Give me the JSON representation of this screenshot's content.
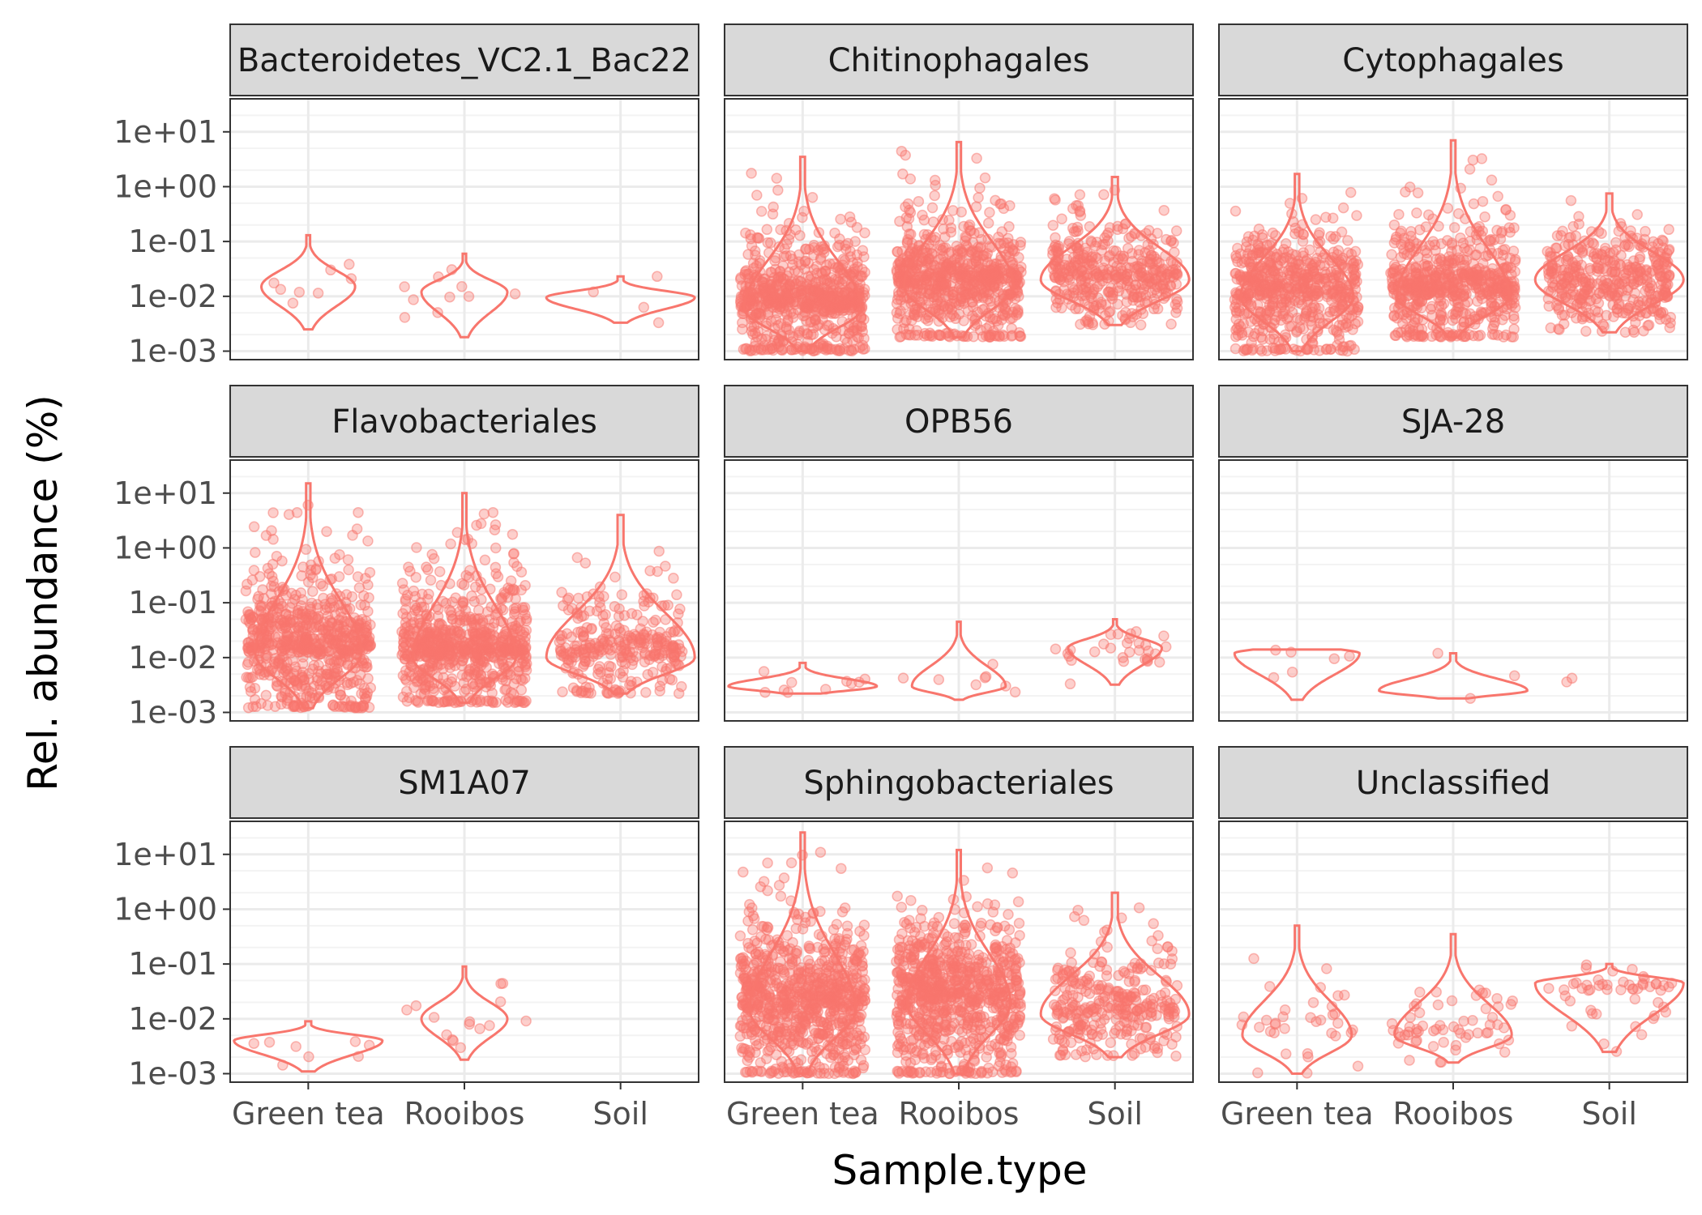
{
  "chart_data": {
    "type": "violin+jitter",
    "xlabel": "Sample.type",
    "ylabel": "Rel. abundance (%)",
    "y_scale": "log10",
    "ylim": [
      0.0007,
      40
    ],
    "y_ticks": [
      {
        "value": 10,
        "label": "1e+01"
      },
      {
        "value": 1,
        "label": "1e+00"
      },
      {
        "value": 0.1,
        "label": "1e-01"
      },
      {
        "value": 0.01,
        "label": "1e-02"
      },
      {
        "value": 0.001,
        "label": "1e-03"
      }
    ],
    "categories": [
      "Green tea",
      "Rooibos",
      "Soil"
    ],
    "grid": true,
    "legend": "none",
    "colors": {
      "series": "#F8766D",
      "strip_fill": "#d9d9d9",
      "panel_border": "#333333",
      "grid_major": "#ebebeb",
      "grid_minor": "#f3f3f3"
    },
    "panels": [
      {
        "name": "Bacteroidetes_VC2.1_Bac22",
        "groups": [
          {
            "category": "Green tea",
            "min": 0.0025,
            "max": 0.13,
            "mode": 0.015,
            "n": 8,
            "width": 0.6
          },
          {
            "category": "Rooibos",
            "min": 0.0018,
            "max": 0.06,
            "mode": 0.012,
            "n": 10,
            "width": 0.55
          },
          {
            "category": "Soil",
            "min": 0.0033,
            "max": 0.023,
            "mode": 0.0095,
            "n": 4,
            "width": 0.95
          }
        ]
      },
      {
        "name": "Chitinophagales",
        "groups": [
          {
            "category": "Green tea",
            "min": 0.001,
            "max": 3.5,
            "mode": 0.006,
            "n": 700,
            "width": 0.75
          },
          {
            "category": "Rooibos",
            "min": 0.0018,
            "max": 6.5,
            "mode": 0.015,
            "n": 700,
            "width": 0.7
          },
          {
            "category": "Soil",
            "min": 0.003,
            "max": 1.5,
            "mode": 0.02,
            "n": 400,
            "width": 0.95
          }
        ]
      },
      {
        "name": "Cytophagales",
        "groups": [
          {
            "category": "Green tea",
            "min": 0.001,
            "max": 1.7,
            "mode": 0.01,
            "n": 600,
            "width": 0.72
          },
          {
            "category": "Rooibos",
            "min": 0.0018,
            "max": 7,
            "mode": 0.01,
            "n": 600,
            "width": 0.72
          },
          {
            "category": "Soil",
            "min": 0.0022,
            "max": 0.75,
            "mode": 0.02,
            "n": 400,
            "width": 0.95
          }
        ]
      },
      {
        "name": "Flavobacteriales",
        "groups": [
          {
            "category": "Green tea",
            "min": 0.0012,
            "max": 15,
            "mode": 0.012,
            "n": 700,
            "width": 0.68
          },
          {
            "category": "Rooibos",
            "min": 0.0015,
            "max": 10,
            "mode": 0.01,
            "n": 700,
            "width": 0.66
          },
          {
            "category": "Soil",
            "min": 0.0022,
            "max": 4,
            "mode": 0.01,
            "n": 300,
            "width": 0.95
          }
        ]
      },
      {
        "name": "OPB56",
        "groups": [
          {
            "category": "Green tea",
            "min": 0.0022,
            "max": 0.008,
            "mode": 0.003,
            "n": 10,
            "width": 0.95
          },
          {
            "category": "Rooibos",
            "min": 0.0017,
            "max": 0.045,
            "mode": 0.003,
            "n": 8,
            "width": 0.6
          },
          {
            "category": "Soil",
            "min": 0.0032,
            "max": 0.05,
            "mode": 0.015,
            "n": 30,
            "width": 0.6
          }
        ]
      },
      {
        "name": "SJA-28",
        "groups": [
          {
            "category": "Green tea",
            "min": 0.0017,
            "max": 0.014,
            "mode": 0.012,
            "n": 6,
            "width": 0.8
          },
          {
            "category": "Rooibos",
            "min": 0.0018,
            "max": 0.012,
            "mode": 0.0025,
            "n": 3,
            "width": 0.95
          },
          {
            "category": "Soil",
            "min": 0.0036,
            "max": 0.0042,
            "mode": 0.004,
            "n": 2,
            "width": 0,
            "points_only": true
          }
        ]
      },
      {
        "name": "SM1A07",
        "groups": [
          {
            "category": "Green tea",
            "min": 0.0011,
            "max": 0.009,
            "mode": 0.004,
            "n": 8,
            "width": 0.95
          },
          {
            "category": "Rooibos",
            "min": 0.0018,
            "max": 0.09,
            "mode": 0.01,
            "n": 15,
            "width": 0.55
          },
          {
            "category": "Soil",
            "min": 0,
            "max": 0,
            "mode": 0,
            "n": 0,
            "width": 0
          }
        ]
      },
      {
        "name": "Sphingobacteriales",
        "groups": [
          {
            "category": "Green tea",
            "min": 0.001,
            "max": 25,
            "mode": 0.015,
            "n": 800,
            "width": 0.68
          },
          {
            "category": "Rooibos",
            "min": 0.001,
            "max": 12,
            "mode": 0.02,
            "n": 800,
            "width": 0.66
          },
          {
            "category": "Soil",
            "min": 0.002,
            "max": 2,
            "mode": 0.012,
            "n": 300,
            "width": 0.95
          }
        ]
      },
      {
        "name": "Unclassified",
        "groups": [
          {
            "category": "Green tea",
            "min": 0.001,
            "max": 0.5,
            "mode": 0.005,
            "n": 35,
            "width": 0.7
          },
          {
            "category": "Rooibos",
            "min": 0.0016,
            "max": 0.35,
            "mode": 0.005,
            "n": 60,
            "width": 0.75
          },
          {
            "category": "Soil",
            "min": 0.0025,
            "max": 0.1,
            "mode": 0.045,
            "n": 50,
            "width": 0.95
          }
        ]
      }
    ]
  }
}
